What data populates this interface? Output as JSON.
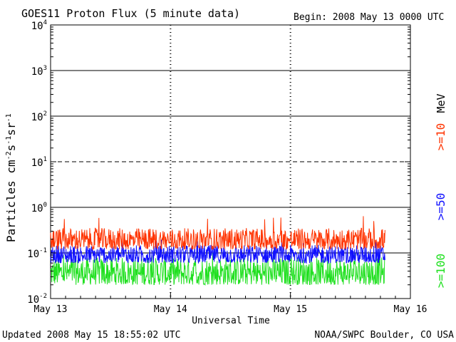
{
  "header": {
    "title": "GOES11 Proton Flux (5 minute data)",
    "begin": "Begin: 2008 May 13 0000 UTC"
  },
  "footer": {
    "updated": "Updated 2008 May 15 18:55:02 UTC",
    "credit": "NOAA/SWPC Boulder, CO USA"
  },
  "colors": {
    "ge10": "#ff3300",
    "ge50": "#1010ff",
    "ge100": "#20e020",
    "axis": "#000000"
  },
  "chart_data": {
    "type": "line",
    "title": "GOES11 Proton Flux (5 minute data)",
    "xlabel": "Universal Time",
    "ylabel": "Particles cm-2 s-1 sr-1",
    "yscale": "log",
    "ylim": [
      0.01,
      10000
    ],
    "xlim": [
      "2008-05-13 00:00",
      "2008-05-16 00:00"
    ],
    "x_tick_labels": [
      "May 13",
      "May 14",
      "May 15",
      "May 16"
    ],
    "y_tick_labels": [
      {
        "base": "10",
        "exp": "-2"
      },
      {
        "base": "10",
        "exp": "-1"
      },
      {
        "base": "10",
        "exp": "0"
      },
      {
        "base": "10",
        "exp": "1"
      },
      {
        "base": "10",
        "exp": "2"
      },
      {
        "base": "10",
        "exp": "3"
      },
      {
        "base": "10",
        "exp": "4"
      }
    ],
    "threshold_lines": [
      {
        "value": 0.1,
        "style": "solid"
      },
      {
        "value": 1,
        "style": "solid"
      },
      {
        "value": 10,
        "style": "dashed"
      },
      {
        "value": 100,
        "style": "solid"
      },
      {
        "value": 1000,
        "style": "solid"
      }
    ],
    "legend_placement": "right",
    "legend_unit": "MeV",
    "series": [
      {
        "name": ">=10",
        "color": "#ff3300",
        "typical_range": [
          0.12,
          0.35
        ],
        "peak": 0.7
      },
      {
        "name": ">=50",
        "color": "#1010ff",
        "typical_range": [
          0.06,
          0.15
        ],
        "peak": 0.2
      },
      {
        "name": ">=100",
        "color": "#20e020",
        "typical_range": [
          0.02,
          0.08
        ],
        "peak": 0.1
      }
    ],
    "data_end": "2008-05-15 18:55",
    "sample_interval_minutes": 5
  }
}
